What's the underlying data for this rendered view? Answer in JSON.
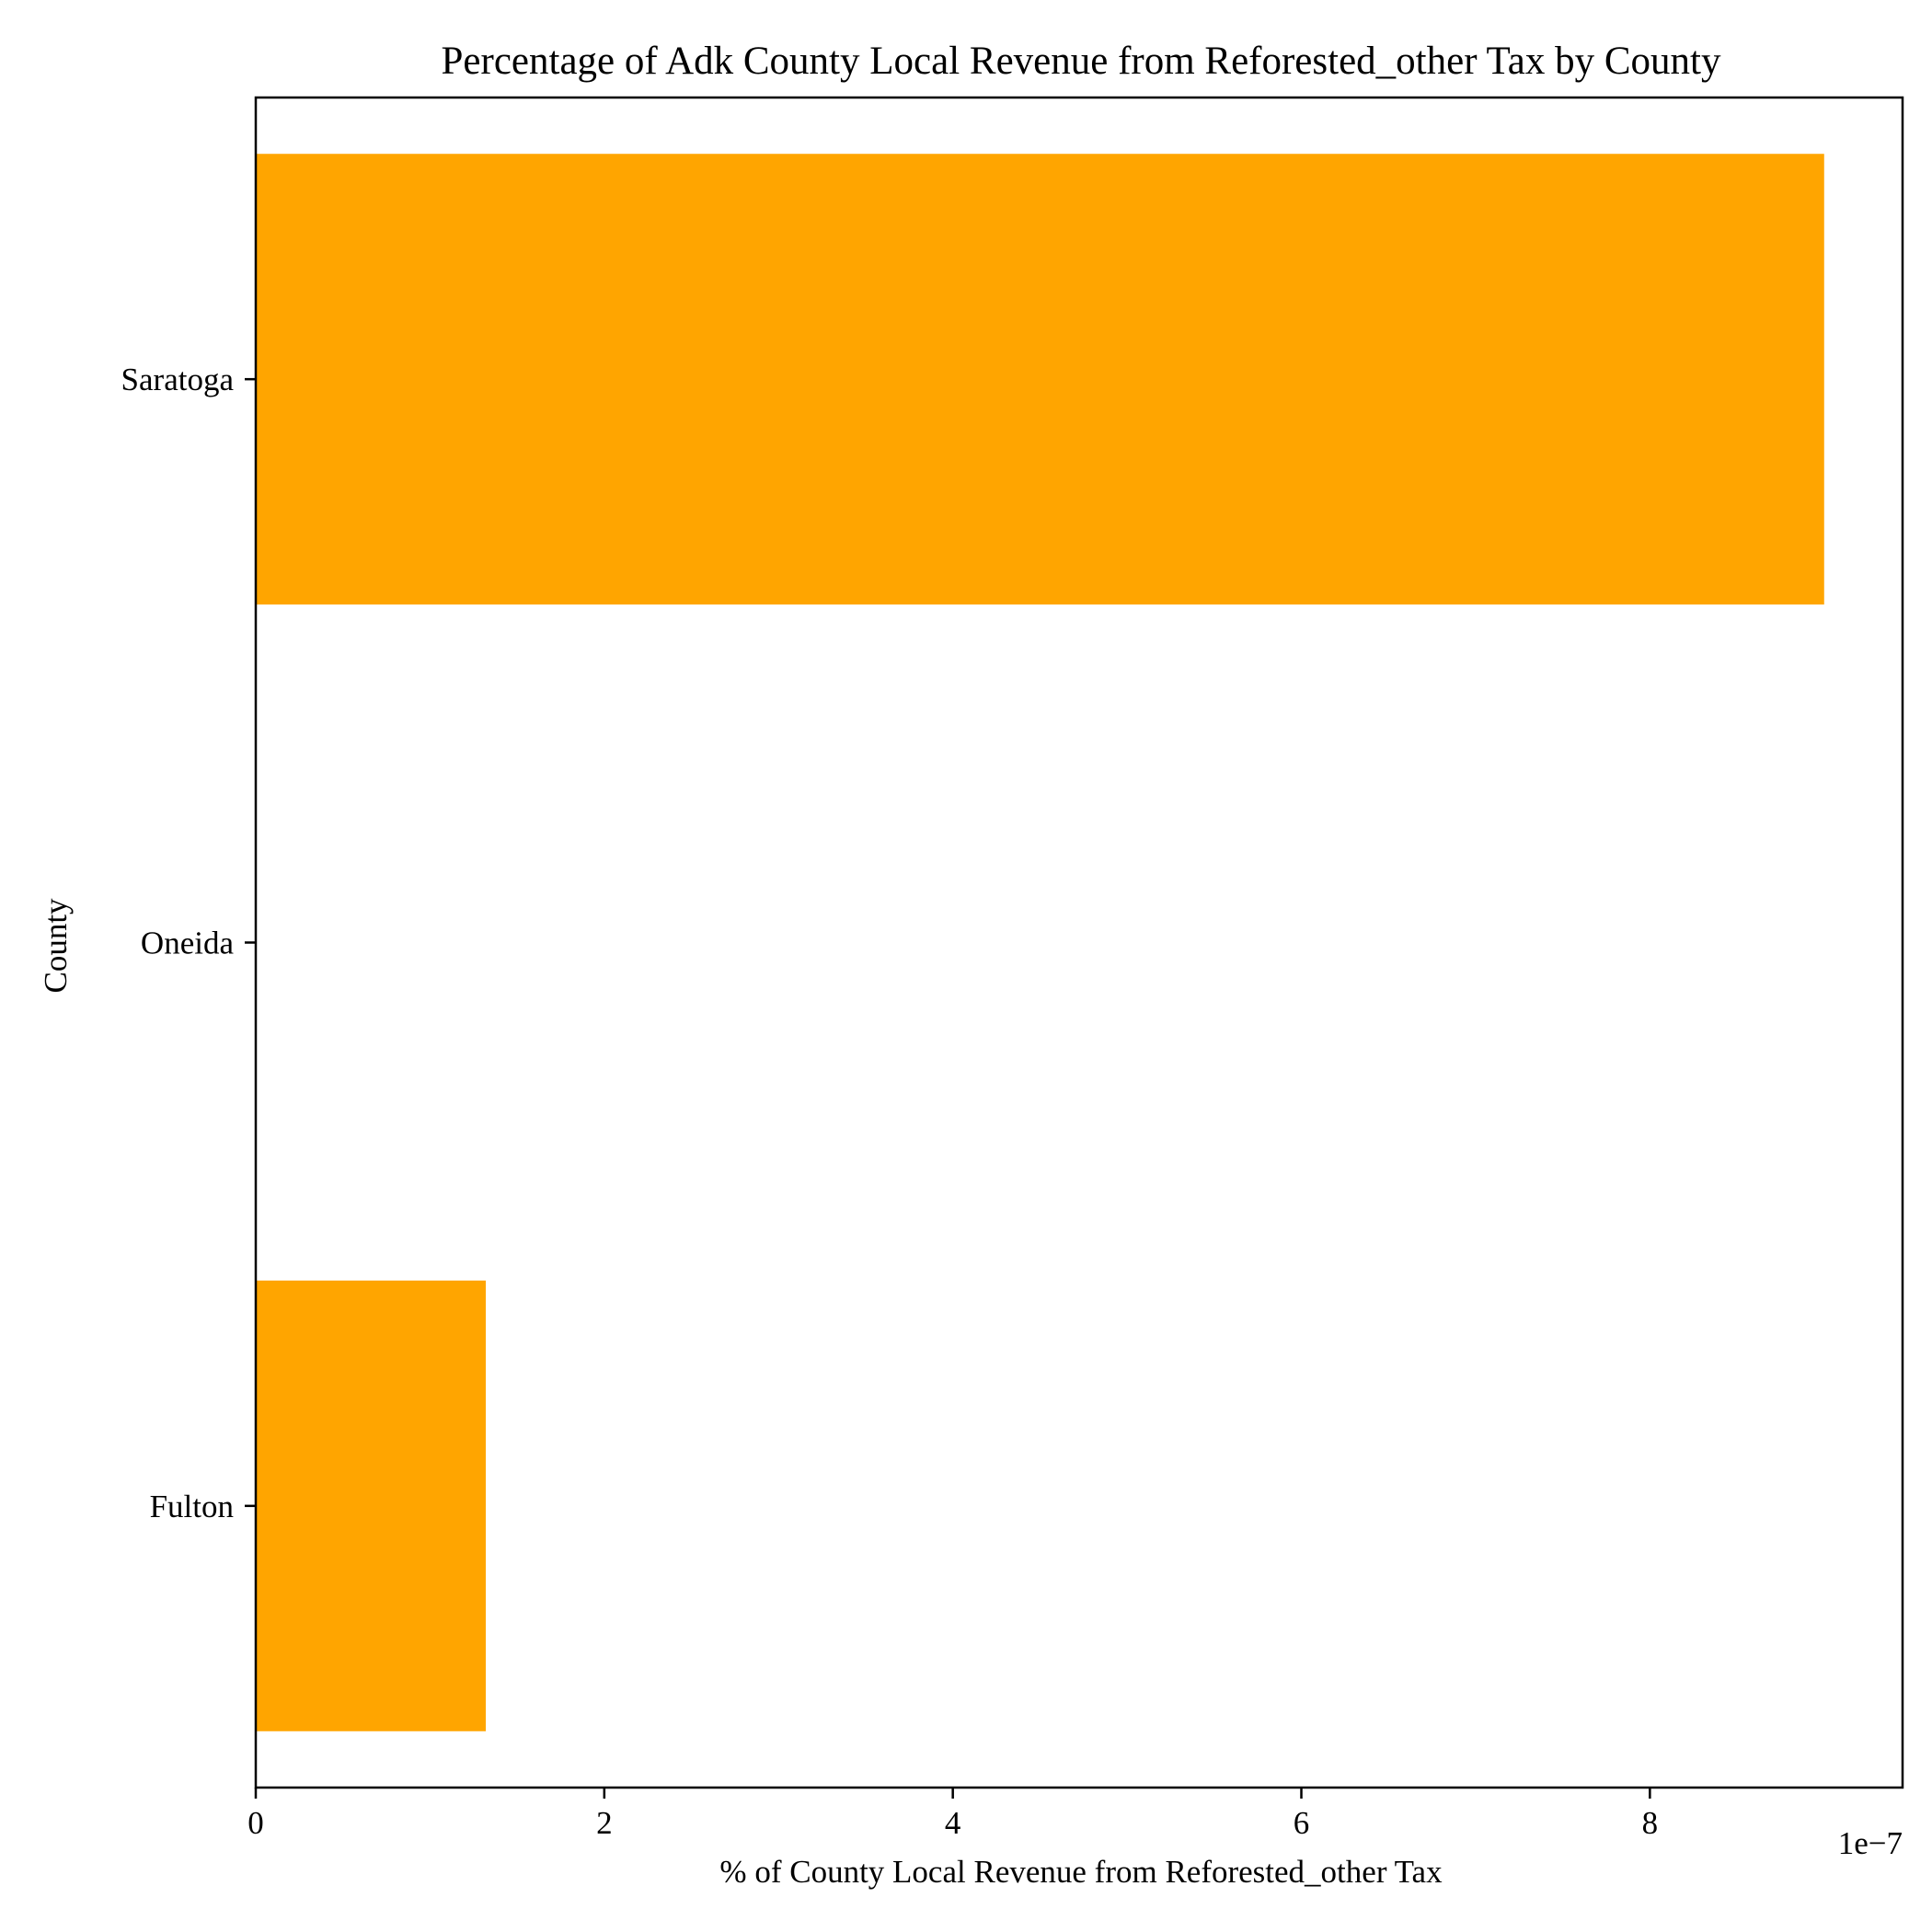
{
  "chart_data": {
    "type": "bar",
    "orientation": "horizontal",
    "title": "Percentage of Adk County Local Revenue from Reforested_other Tax by County",
    "xlabel": "% of County Local Revenue from Reforested_other Tax",
    "ylabel": "County",
    "x_offset_label": "1e−7",
    "categories": [
      "Saratoga",
      "Oneida",
      "Fulton"
    ],
    "values": [
      9e-07,
      0.0,
      1.32e-07
    ],
    "xlim": [
      0,
      9.45e-07
    ],
    "x_ticks": [
      0,
      2e-07,
      4e-07,
      6e-07,
      8e-07
    ],
    "x_tick_labels": [
      "0",
      "2",
      "4",
      "6",
      "8"
    ],
    "bar_color": "#FFA500",
    "grid": false,
    "legend": "none"
  }
}
